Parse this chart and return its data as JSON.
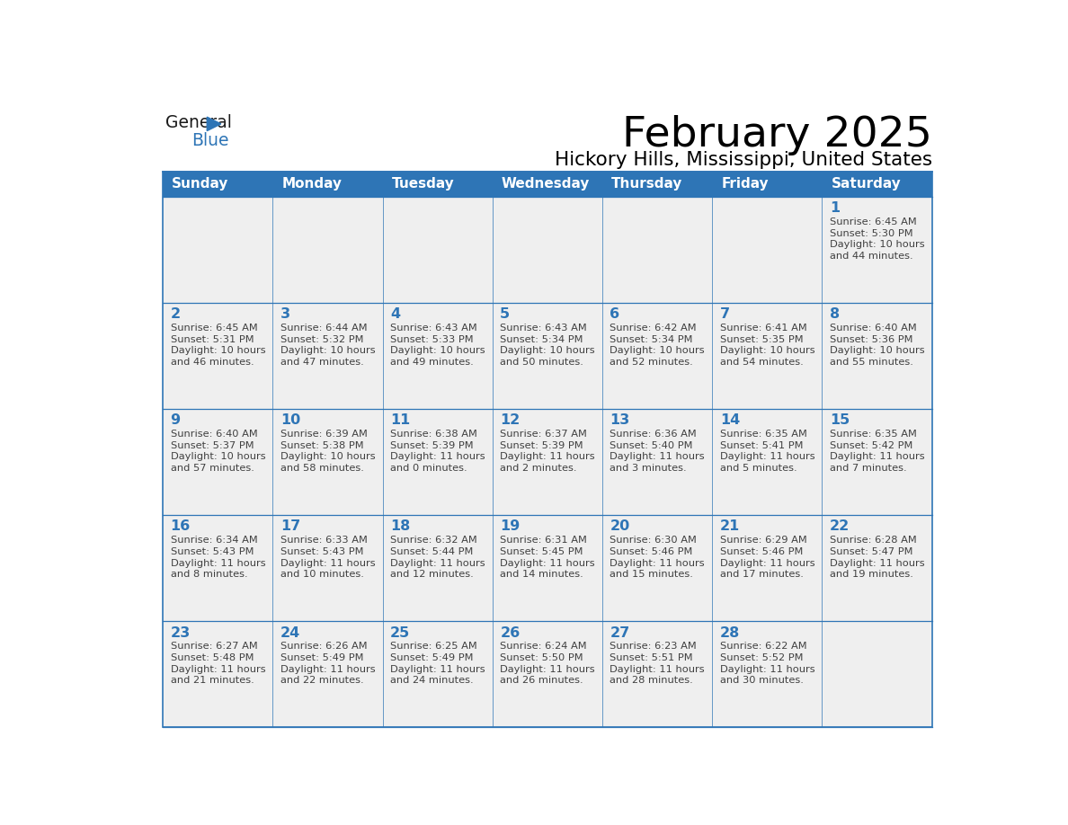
{
  "title": "February 2025",
  "subtitle": "Hickory Hills, Mississippi, United States",
  "header_bg_color": "#2E75B6",
  "header_text_color": "#FFFFFF",
  "cell_bg_color": "#EFEFEF",
  "border_color": "#2E75B6",
  "day_number_color": "#2E75B6",
  "text_color": "#404040",
  "days_of_week": [
    "Sunday",
    "Monday",
    "Tuesday",
    "Wednesday",
    "Thursday",
    "Friday",
    "Saturday"
  ],
  "calendar_data": [
    [
      null,
      null,
      null,
      null,
      null,
      null,
      {
        "day": "1",
        "sunrise": "6:45 AM",
        "sunset": "5:30 PM",
        "daylight_h": "10",
        "daylight_m": "44"
      }
    ],
    [
      {
        "day": "2",
        "sunrise": "6:45 AM",
        "sunset": "5:31 PM",
        "daylight_h": "10",
        "daylight_m": "46"
      },
      {
        "day": "3",
        "sunrise": "6:44 AM",
        "sunset": "5:32 PM",
        "daylight_h": "10",
        "daylight_m": "47"
      },
      {
        "day": "4",
        "sunrise": "6:43 AM",
        "sunset": "5:33 PM",
        "daylight_h": "10",
        "daylight_m": "49"
      },
      {
        "day": "5",
        "sunrise": "6:43 AM",
        "sunset": "5:34 PM",
        "daylight_h": "10",
        "daylight_m": "50"
      },
      {
        "day": "6",
        "sunrise": "6:42 AM",
        "sunset": "5:34 PM",
        "daylight_h": "10",
        "daylight_m": "52"
      },
      {
        "day": "7",
        "sunrise": "6:41 AM",
        "sunset": "5:35 PM",
        "daylight_h": "10",
        "daylight_m": "54"
      },
      {
        "day": "8",
        "sunrise": "6:40 AM",
        "sunset": "5:36 PM",
        "daylight_h": "10",
        "daylight_m": "55"
      }
    ],
    [
      {
        "day": "9",
        "sunrise": "6:40 AM",
        "sunset": "5:37 PM",
        "daylight_h": "10",
        "daylight_m": "57"
      },
      {
        "day": "10",
        "sunrise": "6:39 AM",
        "sunset": "5:38 PM",
        "daylight_h": "10",
        "daylight_m": "58"
      },
      {
        "day": "11",
        "sunrise": "6:38 AM",
        "sunset": "5:39 PM",
        "daylight_h": "11",
        "daylight_m": "0"
      },
      {
        "day": "12",
        "sunrise": "6:37 AM",
        "sunset": "5:39 PM",
        "daylight_h": "11",
        "daylight_m": "2"
      },
      {
        "day": "13",
        "sunrise": "6:36 AM",
        "sunset": "5:40 PM",
        "daylight_h": "11",
        "daylight_m": "3"
      },
      {
        "day": "14",
        "sunrise": "6:35 AM",
        "sunset": "5:41 PM",
        "daylight_h": "11",
        "daylight_m": "5"
      },
      {
        "day": "15",
        "sunrise": "6:35 AM",
        "sunset": "5:42 PM",
        "daylight_h": "11",
        "daylight_m": "7"
      }
    ],
    [
      {
        "day": "16",
        "sunrise": "6:34 AM",
        "sunset": "5:43 PM",
        "daylight_h": "11",
        "daylight_m": "8"
      },
      {
        "day": "17",
        "sunrise": "6:33 AM",
        "sunset": "5:43 PM",
        "daylight_h": "11",
        "daylight_m": "10"
      },
      {
        "day": "18",
        "sunrise": "6:32 AM",
        "sunset": "5:44 PM",
        "daylight_h": "11",
        "daylight_m": "12"
      },
      {
        "day": "19",
        "sunrise": "6:31 AM",
        "sunset": "5:45 PM",
        "daylight_h": "11",
        "daylight_m": "14"
      },
      {
        "day": "20",
        "sunrise": "6:30 AM",
        "sunset": "5:46 PM",
        "daylight_h": "11",
        "daylight_m": "15"
      },
      {
        "day": "21",
        "sunrise": "6:29 AM",
        "sunset": "5:46 PM",
        "daylight_h": "11",
        "daylight_m": "17"
      },
      {
        "day": "22",
        "sunrise": "6:28 AM",
        "sunset": "5:47 PM",
        "daylight_h": "11",
        "daylight_m": "19"
      }
    ],
    [
      {
        "day": "23",
        "sunrise": "6:27 AM",
        "sunset": "5:48 PM",
        "daylight_h": "11",
        "daylight_m": "21"
      },
      {
        "day": "24",
        "sunrise": "6:26 AM",
        "sunset": "5:49 PM",
        "daylight_h": "11",
        "daylight_m": "22"
      },
      {
        "day": "25",
        "sunrise": "6:25 AM",
        "sunset": "5:49 PM",
        "daylight_h": "11",
        "daylight_m": "24"
      },
      {
        "day": "26",
        "sunrise": "6:24 AM",
        "sunset": "5:50 PM",
        "daylight_h": "11",
        "daylight_m": "26"
      },
      {
        "day": "27",
        "sunrise": "6:23 AM",
        "sunset": "5:51 PM",
        "daylight_h": "11",
        "daylight_m": "28"
      },
      {
        "day": "28",
        "sunrise": "6:22 AM",
        "sunset": "5:52 PM",
        "daylight_h": "11",
        "daylight_m": "30"
      },
      null
    ]
  ]
}
